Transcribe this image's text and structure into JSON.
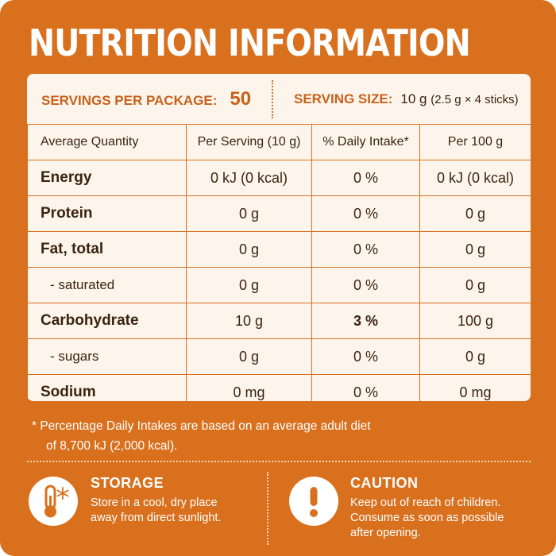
{
  "title": "NUTRITION INFORMATION",
  "servings": {
    "per_package_label": "SERVINGS PER PACKAGE:",
    "per_package_value": "50",
    "size_label": "SERVING SIZE:",
    "size_value": "10 g",
    "size_detail": "(2.5 g × 4 sticks)"
  },
  "table": {
    "headers": [
      "Average Quantity",
      "Per Serving (10 g)",
      "% Daily Intake*",
      "Per 100 g"
    ],
    "rows": [
      {
        "name": "Energy",
        "per_serving": "0 kJ (0 kcal)",
        "daily": "0 %",
        "per_100g": "0 kJ (0 kcal)"
      },
      {
        "name": "Protein",
        "per_serving": "0 g",
        "daily": "0 %",
        "per_100g": "0 g"
      },
      {
        "name": "Fat, total",
        "per_serving": "0 g",
        "daily": "0 %",
        "per_100g": "0 g"
      },
      {
        "name": "- saturated",
        "per_serving": "0 g",
        "daily": "0 %",
        "per_100g": "0 g"
      },
      {
        "name": "Carbohydrate",
        "per_serving": "10 g",
        "daily": "3 %",
        "per_100g": "100 g"
      },
      {
        "name": "- sugars",
        "per_serving": "0 g",
        "daily": "0 %",
        "per_100g": "0 g"
      },
      {
        "name": "Sodium",
        "per_serving": "0 mg",
        "daily": "0 %",
        "per_100g": "0 mg"
      }
    ]
  },
  "footnote": {
    "line1": "* Percentage Daily Intakes are based on an average adult diet",
    "line2": "of 8,700 kJ (2,000 kcal)."
  },
  "storage": {
    "icon": "thermometer-snowflake-icon",
    "title": "STORAGE",
    "line1": "Store in a cool, dry place",
    "line2": "away from direct sunlight."
  },
  "caution": {
    "icon": "exclamation-icon",
    "title": "CAUTION",
    "line1": "Keep out of reach of children.",
    "line2": "Consume as soon as possible",
    "line3": "after opening."
  },
  "colors": {
    "panel": "#d9701e",
    "label_background": "#fdf5ec",
    "accent_text": "#c8611a",
    "body_text": "#3a2410"
  }
}
